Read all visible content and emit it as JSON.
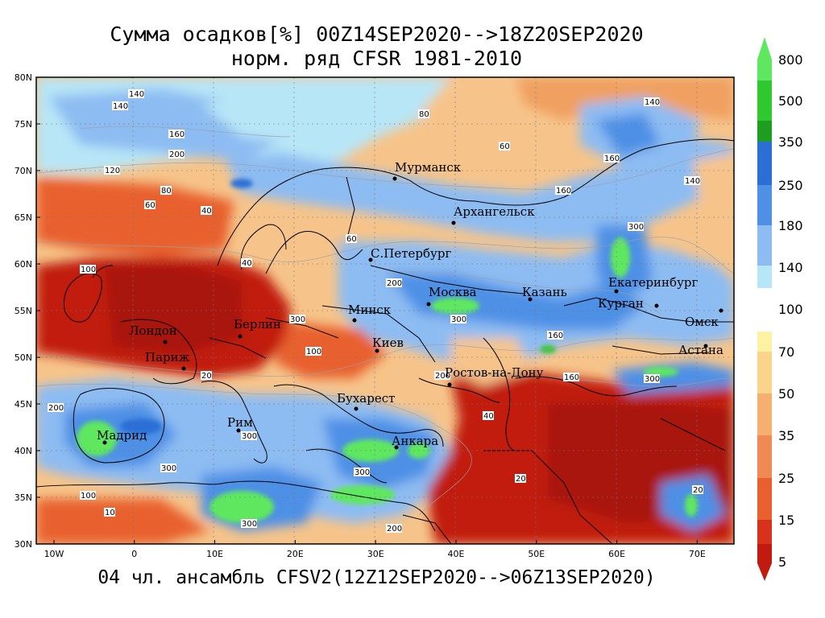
{
  "title_line1": "Сумма осадков[%] 00Z14SEP2020-->18Z20SEP2020",
  "title_line2": "норм. ряд CFSR 1981-2010",
  "footer": "04 чл. ансамбль CFSV2(12Z12SEP2020-->06Z13SEP2020)",
  "lat_labels": [
    "80N",
    "75N",
    "70N",
    "65N",
    "60N",
    "55N",
    "50N",
    "45N",
    "40N",
    "35N",
    "30N"
  ],
  "lon_labels": [
    "10W",
    "0",
    "10E",
    "20E",
    "30E",
    "40E",
    "50E",
    "60E",
    "70E"
  ],
  "cities": [
    {
      "name": "Мурманск"
    },
    {
      "name": "Архангельск"
    },
    {
      "name": "С.Петербург"
    },
    {
      "name": "Москва"
    },
    {
      "name": "Казань"
    },
    {
      "name": "Екатеринбург"
    },
    {
      "name": "Курган"
    },
    {
      "name": "Омск"
    },
    {
      "name": "Астана"
    },
    {
      "name": "Минск"
    },
    {
      "name": "Киев"
    },
    {
      "name": "Берлин"
    },
    {
      "name": "Лондон"
    },
    {
      "name": "Париж"
    },
    {
      "name": "Ростов-на-Дону"
    },
    {
      "name": "Бухарест"
    },
    {
      "name": "Рим"
    },
    {
      "name": "Мадрид"
    },
    {
      "name": "Анкара"
    }
  ],
  "contour_labels": [
    "140",
    "160",
    "200",
    "120",
    "80",
    "60",
    "40",
    "100",
    "300",
    "20",
    "10"
  ],
  "legend": {
    "upper": {
      "labels": [
        "800",
        "500",
        "350",
        "250",
        "180",
        "140",
        "100"
      ],
      "colors": [
        "#5fe85f",
        "#2fc82f",
        "#1e9e1e",
        "#2b6fd6",
        "#4d90e6",
        "#8dbcf2",
        "#b7e6f7"
      ]
    },
    "lower": {
      "labels": [
        "70",
        "50",
        "35",
        "25",
        "15",
        "5"
      ],
      "colors": [
        "#fbf3a3",
        "#f9d48a",
        "#f5b070",
        "#f08a52",
        "#e8602e",
        "#d6321c",
        "#c11a0e"
      ]
    }
  }
}
